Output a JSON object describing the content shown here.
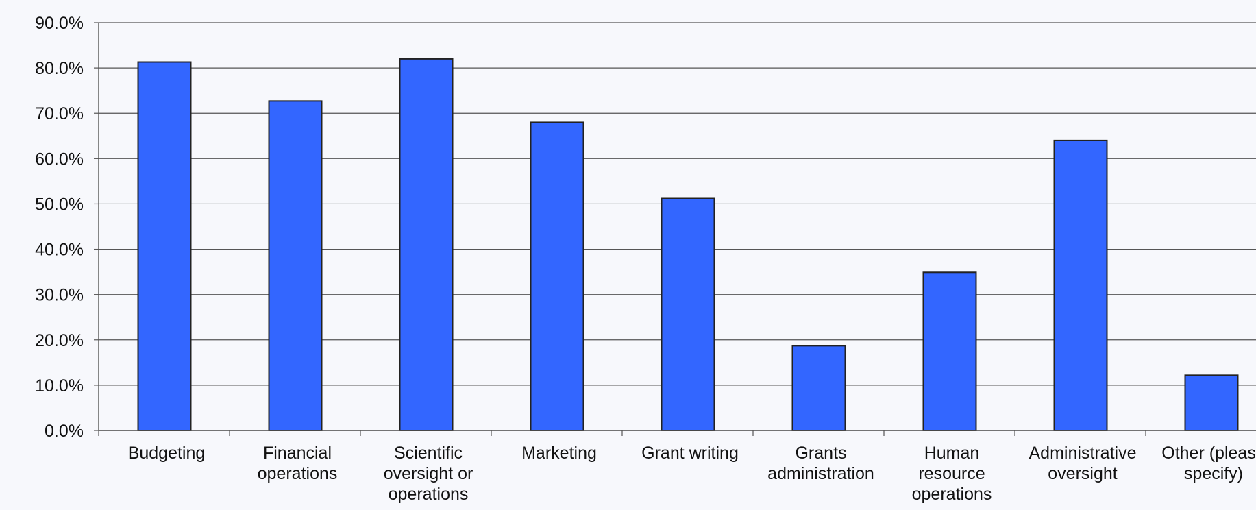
{
  "chart_data": {
    "type": "bar",
    "categories": [
      [
        "Budgeting"
      ],
      [
        "Financial",
        "operations"
      ],
      [
        "Scientific",
        "oversight or",
        "operations"
      ],
      [
        "Marketing"
      ],
      [
        "Grant writing"
      ],
      [
        "Grants",
        "administration"
      ],
      [
        "Human",
        "resource",
        "operations"
      ],
      [
        "Administrative",
        "oversight"
      ],
      [
        "Other (please",
        "specify)"
      ]
    ],
    "values": [
      81.3,
      72.7,
      82.0,
      68.0,
      51.2,
      18.7,
      34.9,
      64.0,
      12.2
    ],
    "ylim": [
      0,
      90
    ],
    "y_ticks": [
      "0.0%",
      "10.0%",
      "20.0%",
      "30.0%",
      "40.0%",
      "50.0%",
      "60.0%",
      "70.0%",
      "80.0%",
      "90.0%"
    ],
    "grid": true,
    "legend": "none",
    "bar_color": "#3366ff",
    "bar_edge_color": "#222222",
    "background_color": "#f7f8fc"
  }
}
